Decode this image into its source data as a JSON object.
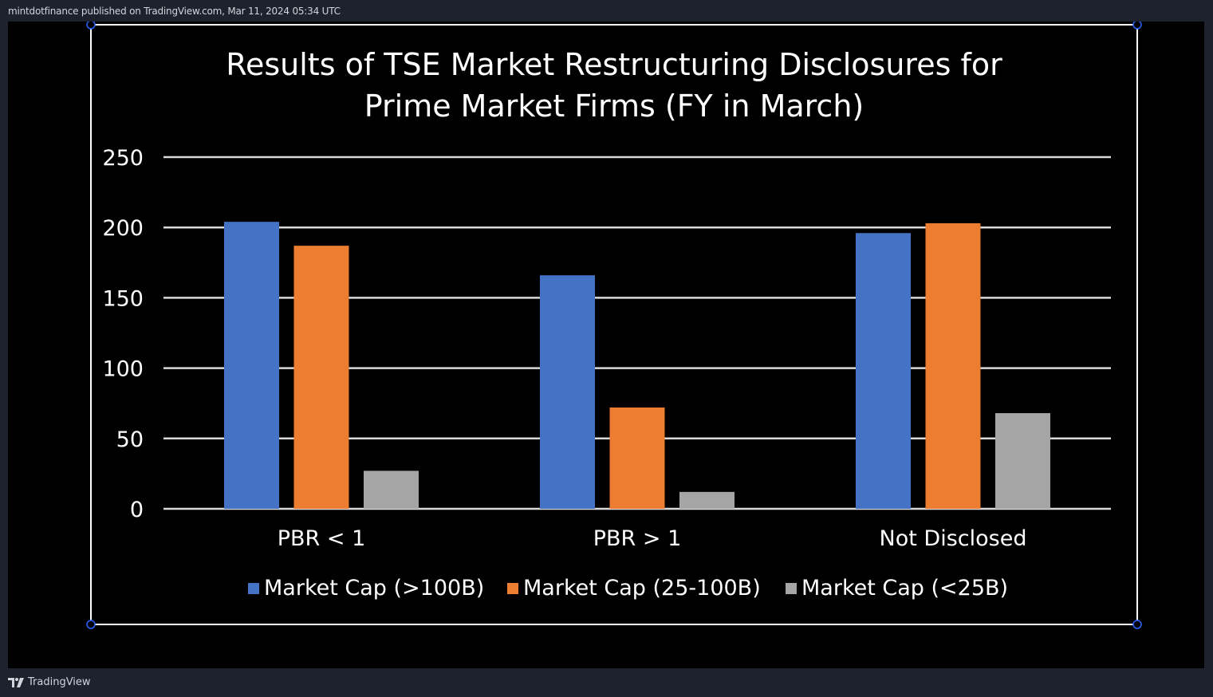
{
  "header": {
    "publish_line": "mintdotfinance published on TradingView.com, Mar 11, 2024 05:34 UTC"
  },
  "footer": {
    "brand": "TradingView"
  },
  "colors": {
    "background": "#1e222d",
    "canvas": "#000000",
    "frame": "#ffffff",
    "handle": "#2962ff",
    "grid": "#d9d9d9",
    "text": "#ffffff"
  },
  "chart_data": {
    "type": "bar",
    "title_lines": [
      "Results of TSE Market Restructuring Disclosures for",
      "Prime Market Firms (FY in March)"
    ],
    "categories": [
      "PBR < 1",
      "PBR > 1",
      "Not Disclosed"
    ],
    "series": [
      {
        "name": "Market Cap (>100B)",
        "color": "#4472c4",
        "values": [
          204,
          166,
          196
        ]
      },
      {
        "name": "Market Cap (25-100B)",
        "color": "#ed7d31",
        "values": [
          187,
          72,
          203
        ]
      },
      {
        "name": "Market Cap (<25B)",
        "color": "#a5a5a5",
        "values": [
          27,
          12,
          68
        ]
      }
    ],
    "yticks": [
      0,
      50,
      100,
      150,
      200,
      250
    ],
    "ylim": [
      0,
      250
    ],
    "grid": true,
    "legend_position": "bottom"
  }
}
